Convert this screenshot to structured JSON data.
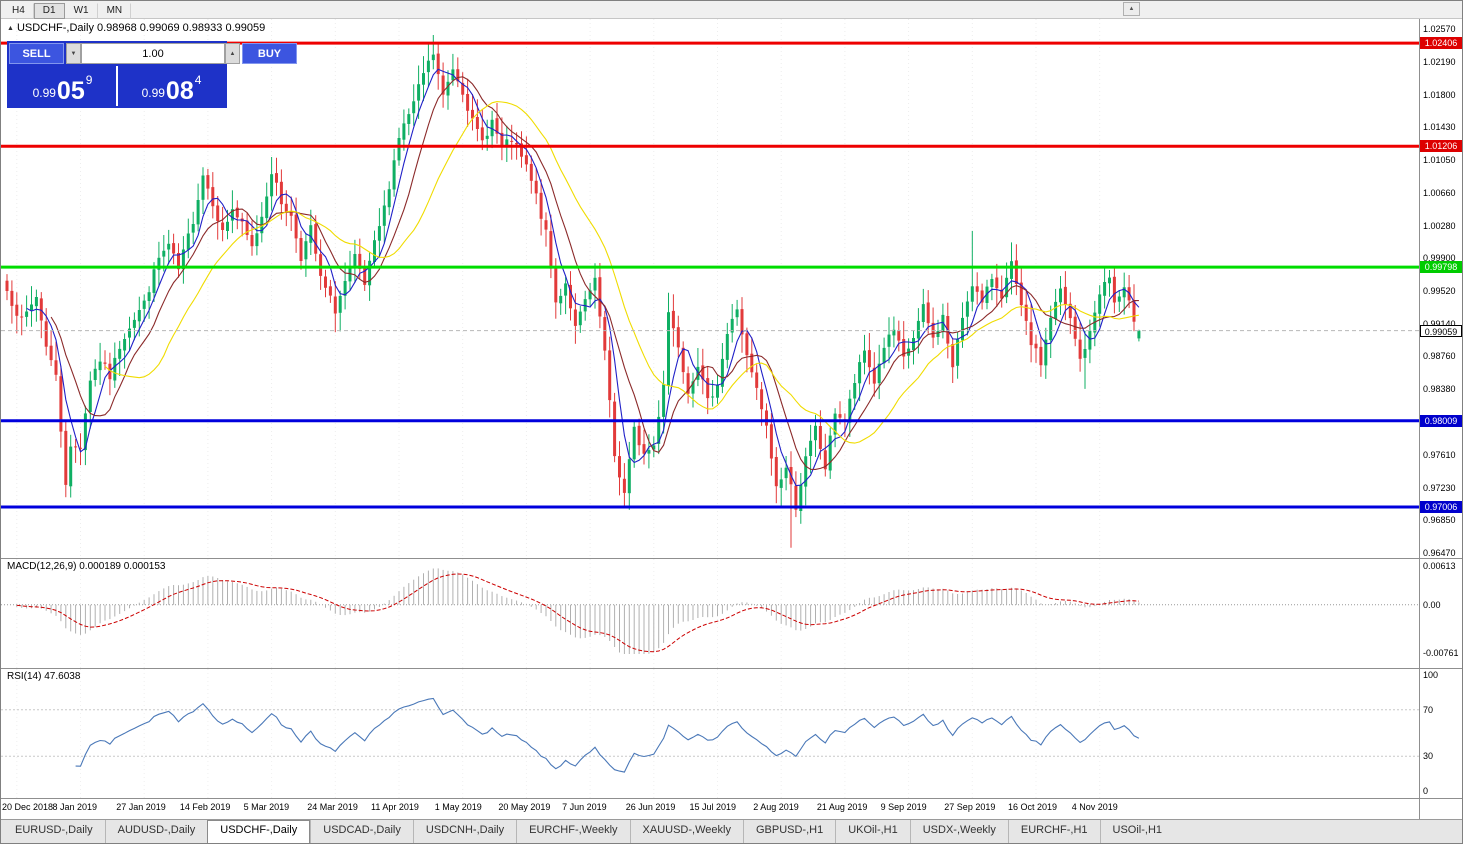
{
  "toolbar": {
    "timeframes": [
      "H4",
      "D1",
      "W1",
      "MN"
    ],
    "active_timeframe": "D1"
  },
  "icons": {
    "collapse": "▲",
    "title_marker": "▲",
    "spinner_up": "▲",
    "spinner_down": "▼"
  },
  "chart": {
    "title": "USDCHF-,Daily 0.98968 0.99069 0.98933 0.99059",
    "trade_panel": {
      "sell_label": "SELL",
      "buy_label": "BUY",
      "volume": "1.00",
      "sell_prefix": "0.99",
      "sell_big": "05",
      "sell_sup": "9",
      "buy_prefix": "0.99",
      "buy_big": "08",
      "buy_sup": "4"
    }
  },
  "price_axis": {
    "ticks": [
      1.0257,
      1.0219,
      1.018,
      1.0143,
      1.0105,
      1.0066,
      1.0028,
      0.999,
      0.9952,
      0.9914,
      0.9876,
      0.9838,
      0.98,
      0.9761,
      0.9723,
      0.9685,
      0.9647
    ],
    "tags": [
      {
        "price": 1.02406,
        "label": "1.02406",
        "bg": "#dd0000",
        "fg": "#ffffff"
      },
      {
        "price": 1.01206,
        "label": "1.01206",
        "bg": "#dd0000",
        "fg": "#ffffff"
      },
      {
        "price": 0.99798,
        "label": "0.99798",
        "bg": "#00cc00",
        "fg": "#ffffff"
      },
      {
        "price": 0.99059,
        "label": "0.99059",
        "bg": "#ffffff",
        "fg": "#000000",
        "border": "#000000"
      },
      {
        "price": 0.98009,
        "label": "0.98009",
        "bg": "#0000cc",
        "fg": "#ffffff"
      },
      {
        "price": 0.97006,
        "label": "0.97006",
        "bg": "#0000cc",
        "fg": "#ffffff"
      }
    ]
  },
  "macd": {
    "label": "MACD(12,26,9) 0.000189 0.000153",
    "ticks": [
      {
        "v": 0.00613,
        "l": "0.00613"
      },
      {
        "v": 0,
        "l": "0.00"
      },
      {
        "v": -0.0076,
        "l": "-0.00761"
      }
    ]
  },
  "rsi": {
    "label": "RSI(14) 47.6038",
    "ticks": [
      100,
      70,
      30,
      0
    ]
  },
  "tabs": {
    "active_index": 2,
    "items": [
      "EURUSD-,Daily",
      "AUDUSD-,Daily",
      "USDCHF-,Daily",
      "USDCAD-,Daily",
      "USDCNH-,Daily",
      "EURCHF-,Weekly",
      "XAUUSD-,Weekly",
      "GBPUSD-,H1",
      "UKOil-,H1",
      "USDX-,Weekly",
      "EURCHF-,H1",
      "USOil-,H1"
    ]
  },
  "chart_data": {
    "type": "candlestick",
    "symbol": "USDCHF",
    "timeframe": "Daily",
    "price_range": [
      0.9647,
      1.0257
    ],
    "current_price": 0.99059,
    "last_candle": {
      "open": 0.98968,
      "high": 0.99069,
      "low": 0.98933,
      "close": 0.99059
    },
    "candle_count": 232,
    "seed": 7,
    "up_color": "#0faf63",
    "down_color": "#e23a3a",
    "close_keypoints": [
      [
        0,
        0.9952
      ],
      [
        3,
        0.9916
      ],
      [
        6,
        0.9946
      ],
      [
        8,
        0.989
      ],
      [
        10,
        0.9852
      ],
      [
        12,
        0.973
      ],
      [
        13,
        0.9768
      ],
      [
        15,
        0.9772
      ],
      [
        17,
        0.985
      ],
      [
        19,
        0.9872
      ],
      [
        21,
        0.9852
      ],
      [
        23,
        0.9888
      ],
      [
        25,
        0.9912
      ],
      [
        28,
        0.9938
      ],
      [
        31,
        0.999
      ],
      [
        33,
        1.0005
      ],
      [
        35,
        0.9976
      ],
      [
        38,
        1.0035
      ],
      [
        40,
        1.0088
      ],
      [
        42,
        1.0056
      ],
      [
        44,
        1.002
      ],
      [
        46,
        1.0048
      ],
      [
        48,
        1.0028
      ],
      [
        50,
        1.0002
      ],
      [
        52,
        1.004
      ],
      [
        54,
        1.0092
      ],
      [
        56,
        1.0055
      ],
      [
        58,
        1.0038
      ],
      [
        60,
        0.9992
      ],
      [
        62,
        1.0024
      ],
      [
        64,
        0.9966
      ],
      [
        67,
        0.993
      ],
      [
        69,
        0.9962
      ],
      [
        71,
        0.999
      ],
      [
        73,
        0.9958
      ],
      [
        75,
        1.0006
      ],
      [
        77,
        1.0048
      ],
      [
        80,
        1.0132
      ],
      [
        83,
        1.017
      ],
      [
        85,
        1.0205
      ],
      [
        87,
        1.0228
      ],
      [
        89,
        1.0178
      ],
      [
        91,
        1.0212
      ],
      [
        93,
        1.0186
      ],
      [
        95,
        1.0148
      ],
      [
        97,
        1.0126
      ],
      [
        99,
        1.015
      ],
      [
        101,
        1.0118
      ],
      [
        103,
        1.0128
      ],
      [
        106,
        1.0096
      ],
      [
        108,
        1.0062
      ],
      [
        110,
        1.0018
      ],
      [
        112,
        0.9938
      ],
      [
        114,
        0.9962
      ],
      [
        116,
        0.9908
      ],
      [
        118,
        0.994
      ],
      [
        120,
        0.9962
      ],
      [
        122,
        0.988
      ],
      [
        124,
        0.976
      ],
      [
        126,
        0.9716
      ],
      [
        128,
        0.979
      ],
      [
        130,
        0.9762
      ],
      [
        132,
        0.9772
      ],
      [
        134,
        0.9846
      ],
      [
        135,
        0.9928
      ],
      [
        137,
        0.989
      ],
      [
        139,
        0.9836
      ],
      [
        141,
        0.9868
      ],
      [
        143,
        0.9822
      ],
      [
        145,
        0.9846
      ],
      [
        147,
        0.9902
      ],
      [
        149,
        0.9932
      ],
      [
        151,
        0.9874
      ],
      [
        153,
        0.9836
      ],
      [
        155,
        0.9792
      ],
      [
        157,
        0.9724
      ],
      [
        159,
        0.9746
      ],
      [
        161,
        0.9702
      ],
      [
        163,
        0.9756
      ],
      [
        165,
        0.9792
      ],
      [
        167,
        0.9746
      ],
      [
        169,
        0.9812
      ],
      [
        171,
        0.98
      ],
      [
        173,
        0.9846
      ],
      [
        175,
        0.9882
      ],
      [
        177,
        0.9846
      ],
      [
        179,
        0.9888
      ],
      [
        181,
        0.9906
      ],
      [
        183,
        0.9872
      ],
      [
        185,
        0.9898
      ],
      [
        187,
        0.9932
      ],
      [
        189,
        0.9896
      ],
      [
        191,
        0.9922
      ],
      [
        193,
        0.9862
      ],
      [
        195,
        0.9922
      ],
      [
        197,
        0.9962
      ],
      [
        199,
        0.9936
      ],
      [
        201,
        0.9968
      ],
      [
        203,
        0.9948
      ],
      [
        205,
        0.9982
      ],
      [
        207,
        0.9932
      ],
      [
        209,
        0.9892
      ],
      [
        211,
        0.9868
      ],
      [
        213,
        0.9922
      ],
      [
        215,
        0.9952
      ],
      [
        217,
        0.9918
      ],
      [
        219,
        0.9872
      ],
      [
        221,
        0.9902
      ],
      [
        223,
        0.9952
      ],
      [
        225,
        0.9968
      ],
      [
        226,
        0.9938
      ],
      [
        228,
        0.9952
      ],
      [
        230,
        0.992
      ],
      [
        231,
        0.9906
      ]
    ],
    "high_overrides": {
      "40": 1.0096,
      "54": 1.0108,
      "87": 1.025,
      "91": 1.0228,
      "135": 0.995,
      "197": 1.0022,
      "224": 0.998
    },
    "low_overrides": {
      "12": 0.9712,
      "67": 0.9904,
      "126": 0.9701,
      "157": 0.9705,
      "160": 0.9653,
      "220": 0.9838
    },
    "moving_averages": [
      {
        "period": 5,
        "color": "#2020c8"
      },
      {
        "period": 10,
        "color": "#8b2a2a"
      },
      {
        "period": 21,
        "color": "#f0dc00"
      }
    ],
    "macd": {
      "fast": 12,
      "slow": 26,
      "signal": 9,
      "range": [
        -0.0078,
        0.0063
      ],
      "hist_color": "#b0b0b0",
      "signal_color": "#cc0000"
    },
    "rsi": {
      "period": 14,
      "color": "#4a78b8",
      "levels": [
        70,
        30
      ]
    },
    "hlines": [
      {
        "price": 1.02406,
        "color": "#ee0000",
        "width": 3,
        "name": "resistance-1"
      },
      {
        "price": 1.01206,
        "color": "#ee0000",
        "width": 3,
        "name": "resistance-2"
      },
      {
        "price": 0.99798,
        "color": "#00dd00",
        "width": 3,
        "name": "pivot-green"
      },
      {
        "price": 0.98009,
        "color": "#0000dd",
        "width": 3,
        "name": "support-1"
      },
      {
        "price": 0.97006,
        "color": "#0000dd",
        "width": 3,
        "name": "support-2"
      }
    ],
    "x_labels": [
      {
        "i": 2,
        "t": "20 Dec 2018"
      },
      {
        "i": 15,
        "t": "8 Jan 2019"
      },
      {
        "i": 28,
        "t": "27 Jan 2019"
      },
      {
        "i": 41,
        "t": "14 Feb 2019"
      },
      {
        "i": 54,
        "t": "5 Mar 2019"
      },
      {
        "i": 67,
        "t": "24 Mar 2019"
      },
      {
        "i": 80,
        "t": "11 Apr 2019"
      },
      {
        "i": 93,
        "t": "1 May 2019"
      },
      {
        "i": 106,
        "t": "20 May 2019"
      },
      {
        "i": 119,
        "t": "7 Jun 2019"
      },
      {
        "i": 132,
        "t": "26 Jun 2019"
      },
      {
        "i": 145,
        "t": "15 Jul 2019"
      },
      {
        "i": 158,
        "t": "2 Aug 2019"
      },
      {
        "i": 171,
        "t": "21 Aug 2019"
      },
      {
        "i": 184,
        "t": "9 Sep 2019"
      },
      {
        "i": 197,
        "t": "27 Sep 2019"
      },
      {
        "i": 210,
        "t": "16 Oct 2019"
      },
      {
        "i": 223,
        "t": "4 Nov 2019"
      }
    ]
  }
}
